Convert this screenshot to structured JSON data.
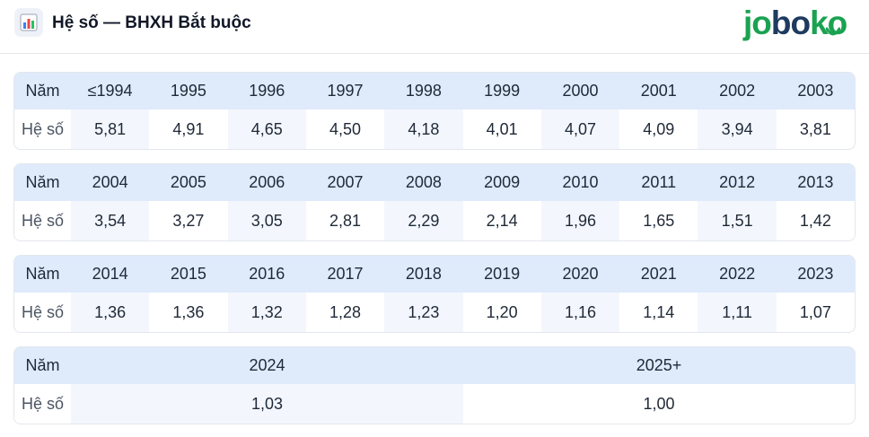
{
  "header": {
    "title": "Hệ số — BHXH Bắt buộc",
    "logo": {
      "p1": "jo",
      "p2": "bo",
      "p3": "ko"
    }
  },
  "labels": {
    "year": "Năm",
    "coef": "Hệ số"
  },
  "tables": [
    {
      "years": [
        "≤1994",
        "1995",
        "1996",
        "1997",
        "1998",
        "1999",
        "2000",
        "2001",
        "2002",
        "2003"
      ],
      "values": [
        "5,81",
        "4,91",
        "4,65",
        "4,50",
        "4,18",
        "4,01",
        "4,07",
        "4,09",
        "3,94",
        "3,81"
      ]
    },
    {
      "years": [
        "2004",
        "2005",
        "2006",
        "2007",
        "2008",
        "2009",
        "2010",
        "2011",
        "2012",
        "2013"
      ],
      "values": [
        "3,54",
        "3,27",
        "3,05",
        "2,81",
        "2,29",
        "2,14",
        "1,96",
        "1,65",
        "1,51",
        "1,42"
      ]
    },
    {
      "years": [
        "2014",
        "2015",
        "2016",
        "2017",
        "2018",
        "2019",
        "2020",
        "2021",
        "2022",
        "2023"
      ],
      "values": [
        "1,36",
        "1,36",
        "1,32",
        "1,28",
        "1,23",
        "1,20",
        "1,16",
        "1,14",
        "1,11",
        "1,07"
      ]
    },
    {
      "years": [
        "2024",
        "2025+"
      ],
      "values": [
        "1,03",
        "1,00"
      ]
    }
  ]
}
